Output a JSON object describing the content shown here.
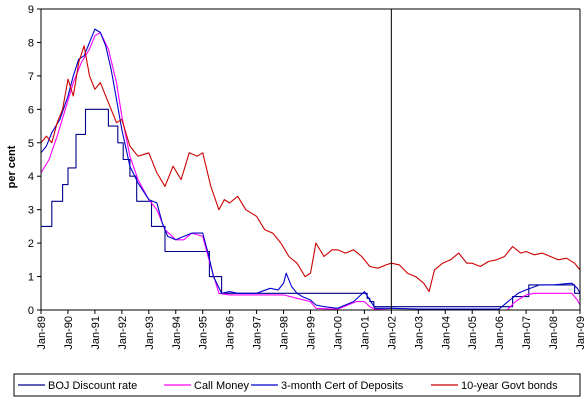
{
  "chart_data": {
    "type": "line",
    "title": "",
    "xlabel": "",
    "ylabel": "per cent",
    "ylim": [
      0,
      9
    ],
    "yticks": [
      0,
      1,
      2,
      3,
      4,
      5,
      6,
      7,
      8,
      9
    ],
    "xlim": [
      1989.0,
      2009.0
    ],
    "xtick_labels": [
      "Jan-89",
      "Jan-90",
      "Jan-91",
      "Jan-92",
      "Jan-93",
      "Jan-94",
      "Jan-95",
      "Jan-96",
      "Jan-97",
      "Jan-98",
      "Jan-99",
      "Jan-00",
      "Jan-01",
      "Jan-02",
      "Jan-03",
      "Jan-04",
      "Jan-05",
      "Jan-06",
      "Jan-07",
      "Jan-08",
      "Jan-09"
    ],
    "grid": false,
    "legend_position": "bottom",
    "annotations": [
      {
        "type": "vertical-line",
        "x": 2002.0
      }
    ],
    "series": [
      {
        "name": "BOJ Discount rate",
        "color": "#00008b",
        "step": true,
        "x": [
          1989.0,
          1989.4,
          1989.8,
          1990.0,
          1990.3,
          1990.65,
          1991.5,
          1991.85,
          1992.05,
          1992.3,
          1992.55,
          1993.1,
          1993.4,
          1993.6,
          1994.0,
          1995.1,
          1995.25,
          1995.7,
          1999.0,
          2001.0,
          2001.1,
          2001.2,
          2001.35,
          2001.7,
          2006.5,
          2007.1,
          2008.8,
          2009.0
        ],
        "values": [
          2.5,
          3.25,
          3.75,
          4.25,
          5.25,
          6.0,
          5.5,
          5.0,
          4.5,
          4.0,
          3.25,
          2.5,
          2.5,
          1.75,
          1.75,
          1.75,
          1.0,
          0.5,
          0.5,
          0.5,
          0.35,
          0.25,
          0.1,
          0.1,
          0.4,
          0.75,
          0.5,
          0.3
        ]
      },
      {
        "name": "Call Money",
        "color": "#ff00ff",
        "step": false,
        "x": [
          1989.0,
          1989.3,
          1989.6,
          1989.9,
          1990.2,
          1990.5,
          1990.8,
          1991.0,
          1991.2,
          1991.5,
          1991.8,
          1992.0,
          1992.3,
          1992.6,
          1993.0,
          1993.3,
          1993.6,
          1994.0,
          1994.3,
          1994.6,
          1995.0,
          1995.3,
          1995.6,
          1996.0,
          1997.0,
          1997.8,
          1998.0,
          1998.5,
          1999.0,
          1999.2,
          2000.0,
          2000.7,
          2001.0,
          2001.2,
          2001.4,
          2002.0,
          2006.3,
          2006.6,
          2007.0,
          2007.3,
          2008.0,
          2008.7,
          2008.9,
          2009.0
        ],
        "values": [
          4.1,
          4.5,
          5.2,
          6.0,
          6.8,
          7.4,
          7.8,
          8.2,
          8.3,
          7.8,
          6.8,
          5.8,
          4.6,
          3.9,
          3.3,
          3.0,
          2.4,
          2.1,
          2.1,
          2.3,
          2.2,
          1.3,
          0.5,
          0.45,
          0.45,
          0.45,
          0.45,
          0.35,
          0.25,
          0.05,
          0.02,
          0.25,
          0.25,
          0.1,
          0.02,
          0.0,
          0.0,
          0.25,
          0.45,
          0.5,
          0.5,
          0.5,
          0.3,
          0.15
        ]
      },
      {
        "name": "3-month Cert of Deposits",
        "color": "#0000cd",
        "step": false,
        "x": [
          1989.0,
          1989.2,
          1989.4,
          1989.7,
          1990.0,
          1990.2,
          1990.4,
          1990.6,
          1990.8,
          1991.0,
          1991.2,
          1991.4,
          1991.6,
          1991.8,
          1992.0,
          1992.3,
          1992.6,
          1993.0,
          1993.3,
          1993.5,
          1993.7,
          1994.0,
          1994.3,
          1994.6,
          1995.0,
          1995.2,
          1995.4,
          1995.7,
          1996.0,
          1996.3,
          1996.6,
          1997.0,
          1997.5,
          1997.8,
          1998.0,
          1998.1,
          1998.3,
          1998.5,
          1998.7,
          1999.0,
          1999.2,
          1999.5,
          2000.0,
          2000.6,
          2001.0,
          2001.2,
          2001.4,
          2002.0,
          2003.0,
          2006.0,
          2006.4,
          2006.7,
          2007.0,
          2007.5,
          2008.0,
          2008.7,
          2008.9,
          2009.0
        ],
        "values": [
          4.7,
          4.9,
          5.3,
          5.7,
          6.4,
          7.0,
          7.5,
          7.6,
          8.0,
          8.4,
          8.3,
          7.9,
          7.2,
          6.3,
          5.4,
          4.3,
          3.8,
          3.3,
          3.2,
          2.6,
          2.2,
          2.1,
          2.2,
          2.3,
          2.3,
          1.7,
          1.0,
          0.5,
          0.55,
          0.5,
          0.5,
          0.5,
          0.65,
          0.6,
          0.8,
          1.1,
          0.7,
          0.5,
          0.4,
          0.3,
          0.15,
          0.1,
          0.05,
          0.25,
          0.55,
          0.3,
          0.05,
          0.05,
          0.03,
          0.03,
          0.3,
          0.5,
          0.6,
          0.75,
          0.75,
          0.8,
          0.65,
          0.5
        ]
      },
      {
        "name": "10-year Govt bonds",
        "color": "#cc0000",
        "step": false,
        "x": [
          1989.0,
          1989.2,
          1989.4,
          1989.6,
          1989.8,
          1990.0,
          1990.2,
          1990.4,
          1990.6,
          1990.8,
          1991.0,
          1991.2,
          1991.5,
          1991.8,
          1992.0,
          1992.3,
          1992.6,
          1993.0,
          1993.3,
          1993.6,
          1993.9,
          1994.2,
          1994.5,
          1994.8,
          1995.0,
          1995.3,
          1995.6,
          1995.8,
          1996.0,
          1996.3,
          1996.6,
          1997.0,
          1997.3,
          1997.6,
          1997.9,
          1998.2,
          1998.5,
          1998.8,
          1999.0,
          1999.2,
          1999.5,
          1999.8,
          2000.0,
          2000.3,
          2000.6,
          2000.9,
          2001.2,
          2001.5,
          2001.8,
          2002.0,
          2002.3,
          2002.6,
          2002.9,
          2003.2,
          2003.4,
          2003.6,
          2003.9,
          2004.2,
          2004.5,
          2004.8,
          2005.0,
          2005.3,
          2005.6,
          2005.9,
          2006.2,
          2006.5,
          2006.8,
          2007.0,
          2007.3,
          2007.6,
          2007.9,
          2008.2,
          2008.5,
          2008.8,
          2009.0
        ],
        "values": [
          5.0,
          5.2,
          5.0,
          5.6,
          6.0,
          6.9,
          6.4,
          7.4,
          7.9,
          7.0,
          6.6,
          6.8,
          6.2,
          5.6,
          5.7,
          4.9,
          4.6,
          4.7,
          4.1,
          3.7,
          4.3,
          3.9,
          4.7,
          4.6,
          4.7,
          3.7,
          3.0,
          3.3,
          3.2,
          3.4,
          3.0,
          2.8,
          2.4,
          2.3,
          2.0,
          1.6,
          1.4,
          1.0,
          1.1,
          2.0,
          1.6,
          1.8,
          1.8,
          1.7,
          1.8,
          1.6,
          1.3,
          1.25,
          1.35,
          1.4,
          1.35,
          1.1,
          1.0,
          0.8,
          0.55,
          1.2,
          1.4,
          1.5,
          1.7,
          1.4,
          1.4,
          1.3,
          1.45,
          1.5,
          1.6,
          1.9,
          1.7,
          1.75,
          1.65,
          1.7,
          1.6,
          1.5,
          1.55,
          1.4,
          1.2
        ]
      }
    ]
  }
}
